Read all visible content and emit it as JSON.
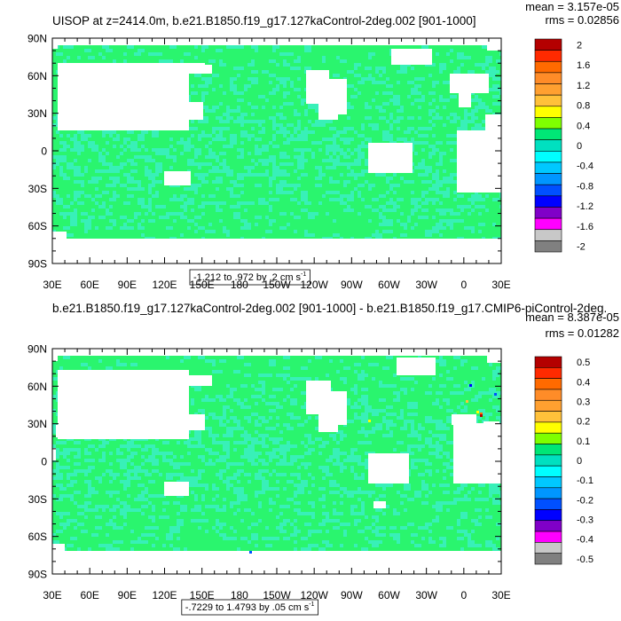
{
  "chart_data": [
    {
      "type": "heatmap",
      "title": "UISOP at z=2414.0m, b.e21.B1850.f19_g17.127kaControl-2deg.002 [901-1000]",
      "stats": [
        "mean = 3.157e-05",
        "rms = 0.02856"
      ],
      "y_ticks": [
        "90N",
        "60N",
        "30N",
        "0",
        "30S",
        "60S",
        "90S"
      ],
      "x_ticks": [
        "30E",
        "60E",
        "90E",
        "120E",
        "150E",
        "180",
        "150W",
        "120W",
        "90W",
        "60W",
        "30W",
        "0",
        "30E"
      ],
      "colorbar_labels": [
        "2",
        "1.6",
        "1.2",
        "0.8",
        "0.4",
        "0",
        "-0.4",
        "-0.8",
        "-1.2",
        "-1.6",
        "-2"
      ],
      "colorbar_colors": [
        "#b40000",
        "#ff2a00",
        "#ff6a00",
        "#ff8c28",
        "#ffa030",
        "#ffc13a",
        "#ffff00",
        "#7fff00",
        "#00e676",
        "#00e0c0",
        "#00ffff",
        "#00c8ff",
        "#0096ff",
        "#0050ff",
        "#0000ff",
        "#8000c8",
        "#ff00ff",
        "#c8c8c8",
        "#808080"
      ],
      "range_label": "-1.212 to .972 by .2 cm s",
      "units_sup": "-1",
      "field_color": "#2af56e",
      "field_tint": "#38f0b8"
    },
    {
      "type": "heatmap",
      "title": "b.e21.B1850.f19_g17.127kaControl-2deg.002 [901-1000] - b.e21.B1850.f19_g17.CMIP6-piControl-2deg.",
      "stats": [
        "mean = 8.387e-05",
        "rms = 0.01282"
      ],
      "y_ticks": [
        "90N",
        "60N",
        "30N",
        "0",
        "30S",
        "60S",
        "90S"
      ],
      "x_ticks": [
        "30E",
        "60E",
        "90E",
        "120E",
        "150E",
        "180",
        "150W",
        "120W",
        "90W",
        "60W",
        "30W",
        "0",
        "30E"
      ],
      "colorbar_labels": [
        "0.5",
        "0.4",
        "0.3",
        "0.2",
        "0.1",
        "0",
        "-0.1",
        "-0.2",
        "-0.3",
        "-0.4",
        "-0.5"
      ],
      "colorbar_colors": [
        "#b40000",
        "#ff2a00",
        "#ff6a00",
        "#ff8c28",
        "#ffa030",
        "#ffc13a",
        "#ffff00",
        "#7fff00",
        "#00e676",
        "#00e0c0",
        "#00ffff",
        "#00c8ff",
        "#0096ff",
        "#0050ff",
        "#0000ff",
        "#8000c8",
        "#ff00ff",
        "#c8c8c8",
        "#808080"
      ],
      "range_label": "-.7229 to 1.4793 by .05 cm s",
      "units_sup": "-1",
      "field_color": "#2af56e",
      "field_tint": "#38f0b8"
    }
  ]
}
